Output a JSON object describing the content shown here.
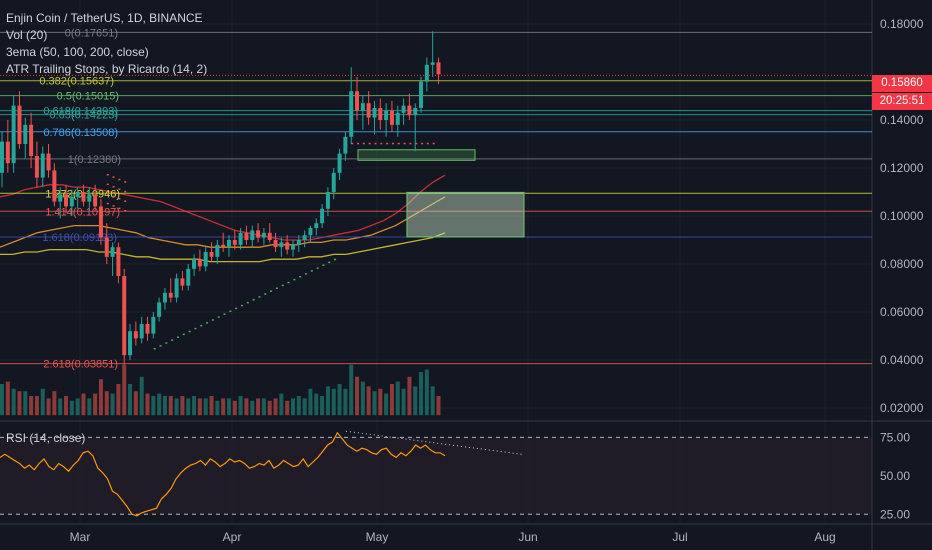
{
  "header": {
    "title": "Enjin Coin / TetherUS, 1D, BINANCE",
    "vol": "Vol (20)",
    "ema": "3ema (50, 100, 200, close)",
    "atr": "ATR Trailing Stops, by Ricardo (14, 2)"
  },
  "price_axis": {
    "ticks": [
      "0.18000",
      "0.14000",
      "0.12000",
      "0.10000",
      "0.08000",
      "0.06000",
      "0.04000",
      "0.02000"
    ],
    "current_price": "0.15860",
    "countdown": "20:25:51",
    "current_color": "#f23645"
  },
  "rsi": {
    "label": "RSI (14, close)",
    "ticks": [
      "75.00",
      "50.00",
      "25.00"
    ]
  },
  "time_axis": {
    "labels": [
      "Mar",
      "Apr",
      "May",
      "Jun",
      "Jul",
      "Aug"
    ]
  },
  "colors": {
    "up": "#26a69a",
    "down": "#ef5350",
    "background": "#131722",
    "rsi_line": "#ff9800"
  },
  "chart_data": [
    {
      "type": "candlestick",
      "title": "Enjin Coin / TetherUS, 1D, BINANCE",
      "ylim": [
        0.015,
        0.19
      ],
      "fib_levels": [
        {
          "label": "0(0.17651)",
          "value": 0.17651,
          "color": "#787b86"
        },
        {
          "label": "0.382(0.15637)",
          "value": 0.15637,
          "color": "#c0ca33"
        },
        {
          "label": "0.5(0.15015)",
          "value": 0.15015,
          "color": "#66bb6a"
        },
        {
          "label": "0.618(0.14393)",
          "value": 0.14393,
          "color": "#26a69a"
        },
        {
          "label": "0.65(0.14223)",
          "value": 0.14223,
          "color": "#26a69a"
        },
        {
          "label": "0.786(0.13508)",
          "value": 0.13508,
          "color": "#42a5f5"
        },
        {
          "label": "1(0.12380)",
          "value": 0.1238,
          "color": "#787b86"
        },
        {
          "label": "1.272(0.10946)",
          "value": 0.10946,
          "color": "#cddc39"
        },
        {
          "label": "1.414(0.10197)",
          "value": 0.10197,
          "color": "#ef5350"
        },
        {
          "label": "1.618(0.09123)",
          "value": 0.09123,
          "color": "#3f51b5"
        },
        {
          "label": "2.618(0.03851)",
          "value": 0.03851,
          "color": "#ef5350"
        }
      ],
      "ohlc": [
        [
          0.118,
          0.135,
          0.112,
          0.131
        ],
        [
          0.131,
          0.14,
          0.118,
          0.122
        ],
        [
          0.122,
          0.15,
          0.118,
          0.146
        ],
        [
          0.146,
          0.152,
          0.128,
          0.13
        ],
        [
          0.13,
          0.141,
          0.124,
          0.138
        ],
        [
          0.138,
          0.143,
          0.12,
          0.125
        ],
        [
          0.125,
          0.131,
          0.112,
          0.116
        ],
        [
          0.116,
          0.129,
          0.112,
          0.126
        ],
        [
          0.126,
          0.13,
          0.116,
          0.119
        ],
        [
          0.119,
          0.122,
          0.104,
          0.106
        ],
        [
          0.106,
          0.112,
          0.099,
          0.109
        ],
        [
          0.109,
          0.113,
          0.101,
          0.104
        ],
        [
          0.104,
          0.111,
          0.1,
          0.108
        ],
        [
          0.108,
          0.112,
          0.103,
          0.11
        ],
        [
          0.11,
          0.113,
          0.104,
          0.106
        ],
        [
          0.106,
          0.112,
          0.102,
          0.109
        ],
        [
          0.109,
          0.113,
          0.102,
          0.104
        ],
        [
          0.104,
          0.107,
          0.088,
          0.091
        ],
        [
          0.091,
          0.097,
          0.08,
          0.083
        ],
        [
          0.083,
          0.089,
          0.075,
          0.087
        ],
        [
          0.087,
          0.089,
          0.072,
          0.075
        ],
        [
          0.075,
          0.078,
          0.038,
          0.042
        ],
        [
          0.042,
          0.055,
          0.04,
          0.052
        ],
        [
          0.052,
          0.056,
          0.046,
          0.049
        ],
        [
          0.049,
          0.058,
          0.047,
          0.055
        ],
        [
          0.055,
          0.058,
          0.048,
          0.051
        ],
        [
          0.051,
          0.06,
          0.049,
          0.058
        ],
        [
          0.058,
          0.066,
          0.056,
          0.064
        ],
        [
          0.064,
          0.07,
          0.061,
          0.068
        ],
        [
          0.068,
          0.074,
          0.064,
          0.066
        ],
        [
          0.066,
          0.076,
          0.064,
          0.074
        ],
        [
          0.074,
          0.077,
          0.069,
          0.071
        ],
        [
          0.071,
          0.08,
          0.069,
          0.078
        ],
        [
          0.078,
          0.084,
          0.075,
          0.082
        ],
        [
          0.082,
          0.086,
          0.077,
          0.079
        ],
        [
          0.079,
          0.087,
          0.077,
          0.085
        ],
        [
          0.085,
          0.089,
          0.081,
          0.083
        ],
        [
          0.083,
          0.09,
          0.08,
          0.088
        ],
        [
          0.088,
          0.093,
          0.085,
          0.087
        ],
        [
          0.087,
          0.092,
          0.083,
          0.09
        ],
        [
          0.09,
          0.094,
          0.086,
          0.088
        ],
        [
          0.088,
          0.095,
          0.086,
          0.093
        ],
        [
          0.093,
          0.096,
          0.088,
          0.09
        ],
        [
          0.09,
          0.096,
          0.087,
          0.094
        ],
        [
          0.094,
          0.097,
          0.089,
          0.091
        ],
        [
          0.091,
          0.095,
          0.088,
          0.093
        ],
        [
          0.093,
          0.097,
          0.089,
          0.09
        ],
        [
          0.09,
          0.093,
          0.085,
          0.087
        ],
        [
          0.087,
          0.091,
          0.083,
          0.089
        ],
        [
          0.089,
          0.092,
          0.084,
          0.086
        ],
        [
          0.086,
          0.09,
          0.083,
          0.088
        ],
        [
          0.088,
          0.092,
          0.085,
          0.09
        ],
        [
          0.09,
          0.094,
          0.087,
          0.092
        ],
        [
          0.092,
          0.096,
          0.089,
          0.095
        ],
        [
          0.095,
          0.099,
          0.092,
          0.097
        ],
        [
          0.097,
          0.105,
          0.095,
          0.103
        ],
        [
          0.103,
          0.112,
          0.1,
          0.11
        ],
        [
          0.11,
          0.12,
          0.107,
          0.118
        ],
        [
          0.118,
          0.128,
          0.115,
          0.126
        ],
        [
          0.126,
          0.135,
          0.123,
          0.133
        ],
        [
          0.133,
          0.162,
          0.13,
          0.152
        ],
        [
          0.152,
          0.158,
          0.14,
          0.144
        ],
        [
          0.144,
          0.15,
          0.136,
          0.147
        ],
        [
          0.147,
          0.152,
          0.138,
          0.141
        ],
        [
          0.141,
          0.148,
          0.134,
          0.145
        ],
        [
          0.145,
          0.149,
          0.136,
          0.14
        ],
        [
          0.14,
          0.147,
          0.133,
          0.144
        ],
        [
          0.144,
          0.148,
          0.135,
          0.138
        ],
        [
          0.138,
          0.146,
          0.133,
          0.143
        ],
        [
          0.143,
          0.149,
          0.138,
          0.146
        ],
        [
          0.146,
          0.151,
          0.14,
          0.142
        ],
        [
          0.142,
          0.147,
          0.127,
          0.145
        ],
        [
          0.145,
          0.158,
          0.143,
          0.156
        ],
        [
          0.156,
          0.166,
          0.152,
          0.163
        ],
        [
          0.163,
          0.177,
          0.158,
          0.164
        ],
        [
          0.164,
          0.166,
          0.155,
          0.159
        ]
      ],
      "volume": [
        0.03,
        0.031,
        0.028,
        0.027,
        0.027,
        0.025,
        0.025,
        0.028,
        0.024,
        0.027,
        0.024,
        0.025,
        0.023,
        0.024,
        0.026,
        0.024,
        0.026,
        0.032,
        0.027,
        0.026,
        0.03,
        0.038,
        0.03,
        0.027,
        0.033,
        0.026,
        0.025,
        0.026,
        0.025,
        0.025,
        0.024,
        0.025,
        0.024,
        0.025,
        0.024,
        0.024,
        0.025,
        0.023,
        0.024,
        0.024,
        0.023,
        0.025,
        0.024,
        0.023,
        0.024,
        0.024,
        0.023,
        0.024,
        0.026,
        0.023,
        0.024,
        0.025,
        0.024,
        0.028,
        0.026,
        0.025,
        0.029,
        0.028,
        0.03,
        0.028,
        0.038,
        0.033,
        0.031,
        0.029,
        0.027,
        0.028,
        0.026,
        0.03,
        0.031,
        0.028,
        0.033,
        0.029,
        0.035,
        0.036,
        0.029,
        0.025
      ],
      "ema_50": [
        0.108,
        0.109,
        0.111,
        0.112,
        0.113,
        0.113,
        0.112,
        0.112,
        0.111,
        0.11,
        0.109,
        0.108,
        0.107,
        0.106,
        0.104,
        0.102,
        0.1,
        0.098,
        0.096,
        0.094,
        0.093,
        0.092,
        0.091,
        0.09,
        0.09,
        0.09,
        0.091,
        0.092,
        0.093,
        0.094,
        0.096,
        0.098,
        0.101,
        0.105,
        0.11,
        0.114,
        0.117
      ],
      "ema_100": [
        0.087,
        0.089,
        0.091,
        0.093,
        0.094,
        0.095,
        0.096,
        0.096,
        0.096,
        0.095,
        0.094,
        0.093,
        0.091,
        0.09,
        0.089,
        0.088,
        0.088,
        0.087,
        0.087,
        0.087,
        0.087,
        0.087,
        0.088,
        0.088,
        0.088,
        0.089,
        0.089,
        0.09,
        0.09,
        0.091,
        0.092,
        0.094,
        0.096,
        0.099,
        0.102,
        0.105,
        0.108
      ],
      "ema_200": [
        0.084,
        0.084,
        0.085,
        0.085,
        0.086,
        0.086,
        0.086,
        0.086,
        0.085,
        0.085,
        0.084,
        0.083,
        0.083,
        0.082,
        0.082,
        0.082,
        0.082,
        0.081,
        0.081,
        0.081,
        0.081,
        0.081,
        0.082,
        0.082,
        0.082,
        0.083,
        0.083,
        0.084,
        0.084,
        0.085,
        0.086,
        0.087,
        0.088,
        0.089,
        0.09,
        0.091,
        0.093
      ]
    },
    {
      "type": "line",
      "title": "RSI (14, close)",
      "ylim": [
        20,
        85
      ],
      "values": [
        62,
        64,
        62,
        60,
        58,
        55,
        57,
        54,
        58,
        61,
        56,
        54,
        58,
        56,
        53,
        57,
        60,
        65,
        66,
        63,
        55,
        52,
        48,
        40,
        38,
        34,
        30,
        25,
        24,
        26,
        27,
        28,
        29,
        35,
        38,
        42,
        48,
        52,
        55,
        57,
        58,
        60,
        57,
        61,
        59,
        56,
        58,
        61,
        59,
        60,
        58,
        55,
        56,
        58,
        57,
        60,
        55,
        57,
        60,
        58,
        56,
        57,
        61,
        56,
        59,
        62,
        66,
        70,
        72,
        78,
        74,
        70,
        68,
        66,
        68,
        67,
        65,
        64,
        67,
        68,
        64,
        62,
        65,
        63,
        66,
        70,
        68,
        70,
        67,
        65,
        65,
        63
      ]
    }
  ]
}
